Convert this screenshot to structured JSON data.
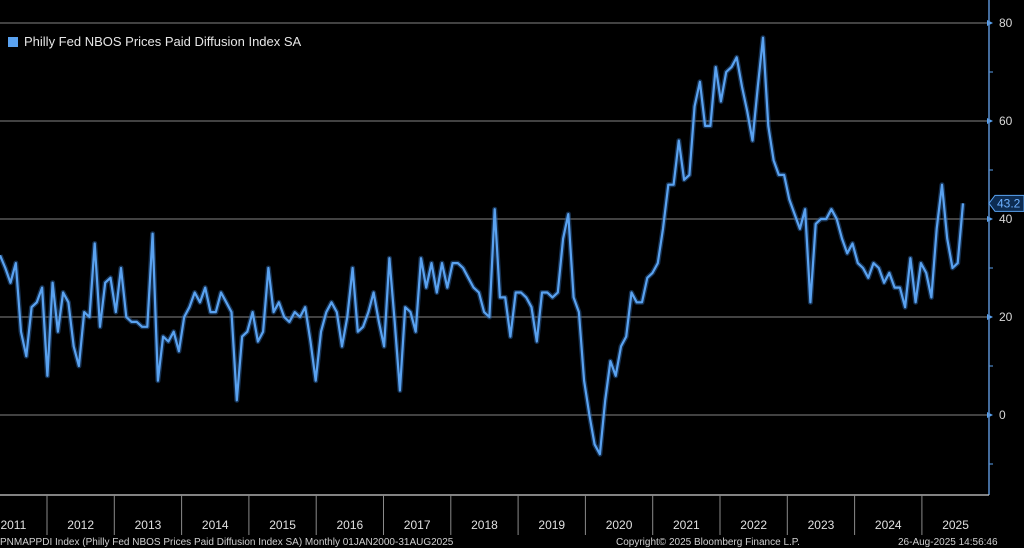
{
  "chart_data": {
    "type": "line",
    "title": "",
    "legend": {
      "label": "Philly Fed NBOS Prices Paid Diffusion Index SA",
      "position": "top-left"
    },
    "series_color": "#5aa2f0",
    "ylim": [
      -16,
      85
    ],
    "yticks": [
      80,
      60,
      40,
      20,
      0
    ],
    "ytick_labels": [
      "80",
      "60",
      "40",
      "20",
      "0"
    ],
    "year_labels": [
      "2011",
      "2012",
      "2013",
      "2014",
      "2015",
      "2016",
      "2017",
      "2018",
      "2019",
      "2020",
      "2021",
      "2022",
      "2023",
      "2024",
      "2025"
    ],
    "last_value_label": "43.2",
    "frequency": "Monthly",
    "values": [
      32.6,
      30,
      27,
      31,
      17,
      12,
      22,
      23,
      26,
      8,
      27,
      17,
      25,
      23,
      14,
      10,
      21,
      20,
      35,
      18,
      27,
      28,
      21,
      30,
      20,
      19,
      19,
      18,
      18,
      37,
      7,
      16,
      15,
      17,
      13,
      20,
      22,
      25,
      23,
      26,
      21,
      21,
      25,
      23,
      21,
      3,
      16,
      17,
      21,
      15,
      17,
      30,
      21,
      23,
      20,
      19,
      21,
      20,
      22,
      15,
      7,
      17,
      21,
      23,
      21,
      14,
      20,
      30,
      17,
      18,
      21,
      25,
      19,
      14,
      32,
      19,
      5,
      22,
      21,
      17,
      32,
      26,
      31,
      25,
      31,
      26,
      31,
      31,
      30,
      28,
      26,
      25,
      21,
      20,
      42,
      24,
      24,
      16,
      25,
      25,
      24,
      22,
      15,
      25,
      25,
      24,
      25,
      36,
      41,
      24,
      21,
      7,
      0,
      -6,
      -8,
      3,
      11,
      8,
      14,
      16,
      25,
      23,
      23,
      28,
      29,
      31,
      38,
      47,
      47,
      56,
      48,
      49,
      63,
      68,
      59,
      59,
      71,
      64,
      70,
      71,
      73,
      67,
      62,
      56,
      67,
      77,
      59,
      52,
      49,
      49,
      44,
      41,
      38,
      42,
      23,
      39,
      40,
      40,
      42,
      40,
      36,
      33,
      35,
      31,
      30,
      28,
      31,
      30,
      27,
      29,
      26,
      26,
      22,
      32,
      23,
      31,
      29,
      24,
      38,
      47,
      36,
      30,
      31,
      43.2
    ]
  },
  "footer": {
    "source": "PNMAPPDI Index (Philly Fed NBOS Prices Paid Diffusion Index SA)  Monthly 01JAN2000-31AUG2025",
    "copyright": "Copyright© 2025 Bloomberg Finance L.P.",
    "timestamp": "26-Aug-2025 14:56:46"
  }
}
